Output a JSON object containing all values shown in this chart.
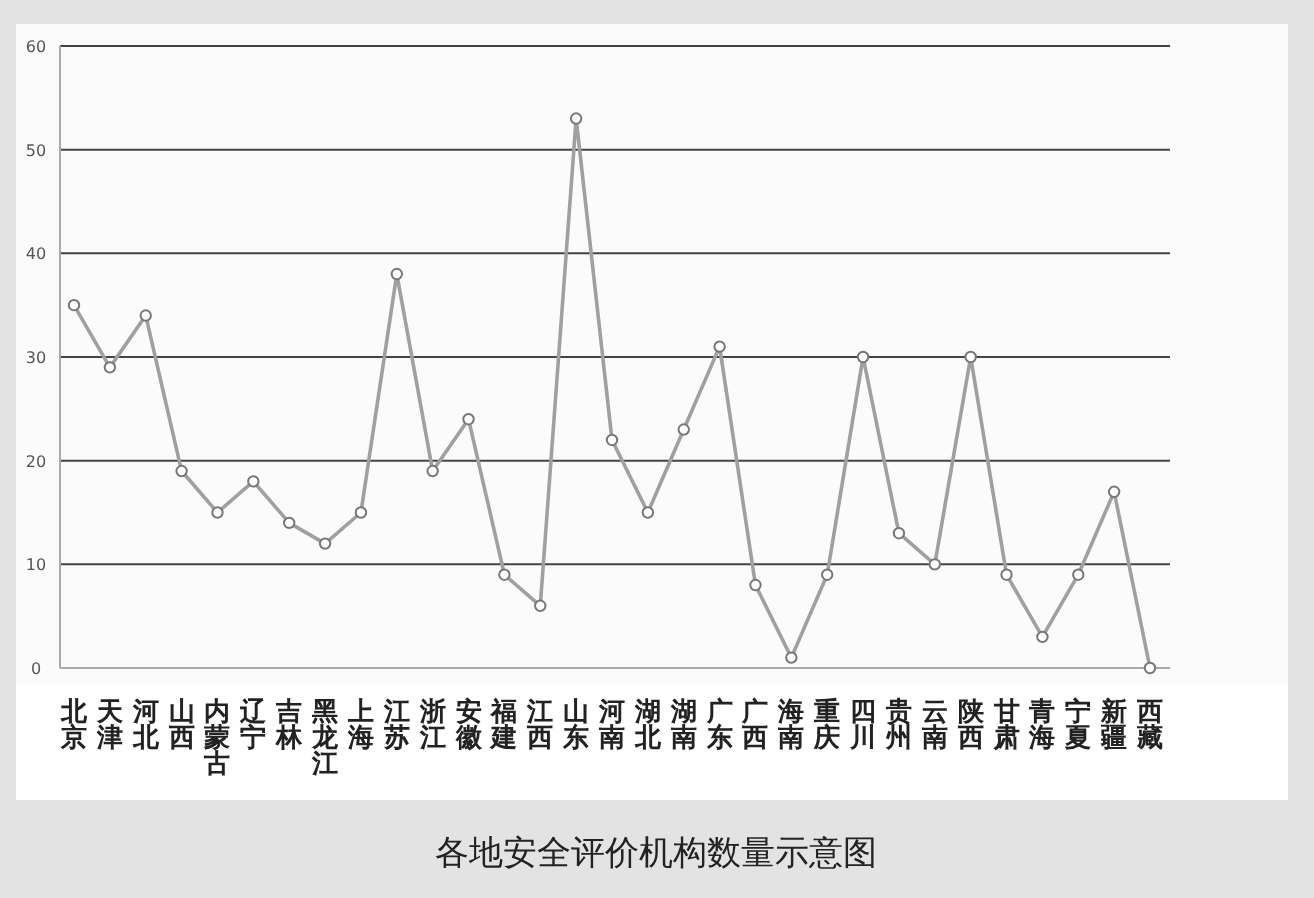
{
  "chart_data": {
    "type": "line",
    "title": "各地安全评价机构数量示意图",
    "categories": [
      "北京",
      "天津",
      "河北",
      "山西",
      "内蒙古",
      "辽宁",
      "吉林",
      "黑龙江",
      "上海",
      "江苏",
      "浙江",
      "安徽",
      "福建",
      "江西",
      "山东",
      "河南",
      "湖北",
      "湖南",
      "广东",
      "广西",
      "海南",
      "重庆",
      "四川",
      "贵州",
      "云南",
      "陕西",
      "甘肃",
      "青海",
      "宁夏",
      "新疆",
      "西藏"
    ],
    "series": [
      {
        "color": "#a0a0a0",
        "values": [
          35,
          29,
          34,
          19,
          15,
          18,
          14,
          12,
          15,
          38,
          19,
          24,
          9,
          6,
          53,
          22,
          15,
          23,
          31,
          8,
          1,
          9,
          30,
          13,
          10,
          30,
          9,
          3,
          9,
          17,
          0
        ]
      }
    ],
    "ylim": [
      0,
      60
    ],
    "yticks": [
      0,
      10,
      20,
      30,
      40,
      50,
      60
    ],
    "grid": "y",
    "marker": "circle",
    "line_style": "solid"
  }
}
